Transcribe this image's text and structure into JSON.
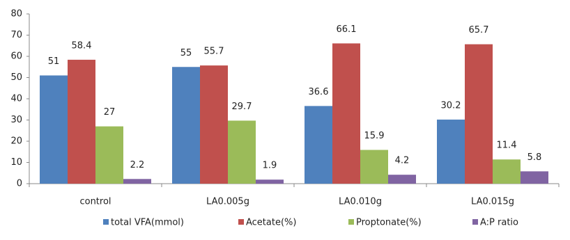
{
  "chart_data": {
    "type": "bar",
    "categories": [
      "control",
      "LA0.005g",
      "LA0.010g",
      "LA0.015g"
    ],
    "series": [
      {
        "name": "total VFA(mmol)",
        "color": "#4f81bd",
        "values": [
          51,
          55,
          36.6,
          30.2
        ]
      },
      {
        "name": "Acetate(%)",
        "color": "#c0504d",
        "values": [
          58.4,
          55.7,
          66.1,
          65.7
        ]
      },
      {
        "name": "Proptonate(%)",
        "color": "#9bbb59",
        "values": [
          27,
          29.7,
          15.9,
          11.4
        ]
      },
      {
        "name": "A:P ratio",
        "color": "#8064a2",
        "values": [
          2.2,
          1.9,
          4.2,
          5.8
        ]
      }
    ],
    "ylim": [
      0,
      80
    ],
    "yticks": [
      0,
      10,
      20,
      30,
      40,
      50,
      60,
      70,
      80
    ],
    "grid": false,
    "legend": "bottom"
  }
}
